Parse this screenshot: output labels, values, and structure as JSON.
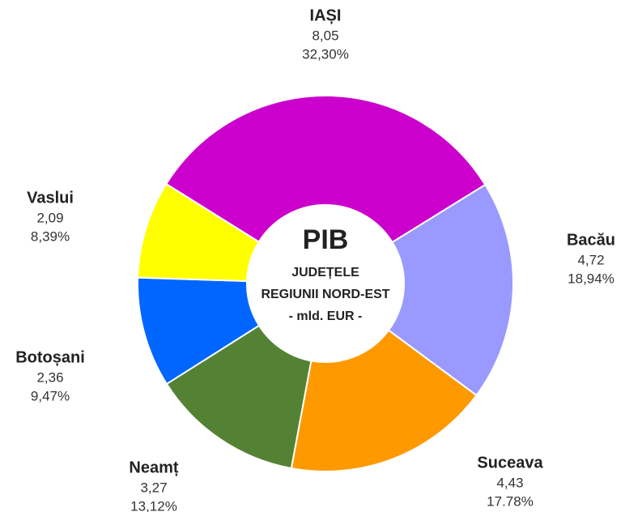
{
  "chart_data": {
    "type": "donut",
    "title": "PIB",
    "subtitle_lines": [
      "JUDEȚELE",
      "REGIUNII NORD-EST",
      "- mld. EUR -"
    ],
    "categories": [
      "IAȘI",
      "Bacău",
      "Suceava",
      "Neamț",
      "Botoșani",
      "Vaslui"
    ],
    "values": [
      8.05,
      4.72,
      4.43,
      3.27,
      2.36,
      2.09
    ],
    "value_labels": [
      "8,05",
      "4,72",
      "4,43",
      "3,27",
      "2,36",
      "2,09"
    ],
    "percentages": [
      32.3,
      18.94,
      17.78,
      13.12,
      9.47,
      8.39
    ],
    "percentage_labels": [
      "32,30%",
      "18,94%",
      "17.78%",
      "13,12%",
      "9,47%",
      "8,39%"
    ],
    "colors": [
      "#cc00cc",
      "#9999ff",
      "#ff9900",
      "#548235",
      "#0066ff",
      "#ffff00"
    ]
  }
}
